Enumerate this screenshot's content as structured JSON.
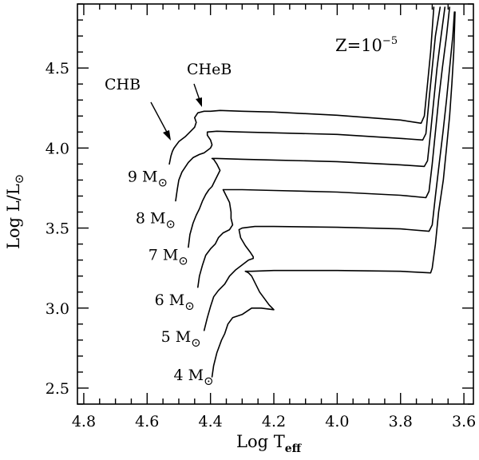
{
  "chart_data": {
    "type": "line",
    "xlabel": "Log T",
    "xlabel_sub": "eff",
    "ylabel": "Log L/L",
    "ylabel_sub": "⊙",
    "xlim": [
      4.82,
      3.57
    ],
    "ylim": [
      2.4,
      4.9
    ],
    "x_reversed": true,
    "grid": false,
    "x_major_ticks": [
      4.8,
      4.6,
      4.4,
      4.2,
      4.0,
      3.8,
      3.6
    ],
    "x_tick_labels": [
      "4.8",
      "4.6",
      "4.4",
      "4.2",
      "4.0",
      "3.8",
      "3.6"
    ],
    "y_major_ticks": [
      2.5,
      3.0,
      3.5,
      4.0,
      4.5
    ],
    "y_tick_labels": [
      "2.5",
      "3.0",
      "3.5",
      "4.0",
      "4.5"
    ],
    "annotations": {
      "metallicity": {
        "text": "Z=10",
        "sup": "−5"
      },
      "chb": "CHB",
      "cheb": "CHeB"
    },
    "mass_labels": [
      {
        "text": "9 M",
        "sym": "⊙",
        "at": [
          4.535,
          3.79
        ]
      },
      {
        "text": "8 M",
        "sym": "⊙",
        "at": [
          4.51,
          3.53
        ]
      },
      {
        "text": "7 M",
        "sym": "⊙",
        "at": [
          4.47,
          3.3
        ]
      },
      {
        "text": "6 M",
        "sym": "⊙",
        "at": [
          4.45,
          3.02
        ]
      },
      {
        "text": "5 M",
        "sym": "⊙",
        "at": [
          4.43,
          2.79
        ]
      },
      {
        "text": "4 M",
        "sym": "⊙",
        "at": [
          4.39,
          2.55
        ]
      }
    ],
    "series": [
      {
        "points": [
          [
            4.395,
            2.57
          ],
          [
            4.39,
            2.64
          ],
          [
            4.38,
            2.72
          ],
          [
            4.365,
            2.8
          ],
          [
            4.355,
            2.84
          ],
          [
            4.345,
            2.9
          ],
          [
            4.33,
            2.94
          ],
          [
            4.3,
            2.96
          ],
          [
            4.27,
            3.0
          ],
          [
            4.24,
            3.0
          ],
          [
            4.2,
            2.99
          ],
          [
            4.2,
            2.99
          ],
          [
            4.215,
            3.02
          ],
          [
            4.23,
            3.06
          ],
          [
            4.245,
            3.1
          ],
          [
            4.26,
            3.16
          ],
          [
            4.27,
            3.2
          ],
          [
            4.28,
            3.22
          ],
          [
            4.29,
            3.23
          ],
          [
            4.27,
            3.23
          ],
          [
            4.2,
            3.235
          ],
          [
            4.0,
            3.235
          ],
          [
            3.8,
            3.23
          ],
          [
            3.705,
            3.22
          ],
          [
            3.7,
            3.25
          ],
          [
            3.69,
            3.4
          ],
          [
            3.68,
            3.6
          ],
          [
            3.665,
            3.8
          ],
          [
            3.655,
            4.0
          ],
          [
            3.645,
            4.2
          ],
          [
            3.638,
            4.4
          ],
          [
            3.632,
            4.6
          ],
          [
            3.628,
            4.85
          ]
        ]
      },
      {
        "points": [
          [
            4.42,
            2.86
          ],
          [
            4.41,
            2.94
          ],
          [
            4.4,
            3.01
          ],
          [
            4.39,
            3.07
          ],
          [
            4.375,
            3.11
          ],
          [
            4.355,
            3.15
          ],
          [
            4.34,
            3.2
          ],
          [
            4.32,
            3.24
          ],
          [
            4.3,
            3.27
          ],
          [
            4.28,
            3.3
          ],
          [
            4.265,
            3.31
          ],
          [
            4.265,
            3.32
          ],
          [
            4.275,
            3.35
          ],
          [
            4.29,
            3.39
          ],
          [
            4.305,
            3.44
          ],
          [
            4.31,
            3.49
          ],
          [
            4.3,
            3.5
          ],
          [
            4.26,
            3.51
          ],
          [
            4.2,
            3.51
          ],
          [
            4.0,
            3.505
          ],
          [
            3.8,
            3.495
          ],
          [
            3.71,
            3.48
          ],
          [
            3.7,
            3.52
          ],
          [
            3.69,
            3.7
          ],
          [
            3.678,
            3.9
          ],
          [
            3.666,
            4.1
          ],
          [
            3.655,
            4.3
          ],
          [
            3.645,
            4.5
          ],
          [
            3.635,
            4.7
          ],
          [
            3.63,
            4.85
          ]
        ]
      },
      {
        "points": [
          [
            4.44,
            3.13
          ],
          [
            4.435,
            3.2
          ],
          [
            4.425,
            3.27
          ],
          [
            4.415,
            3.33
          ],
          [
            4.4,
            3.37
          ],
          [
            4.385,
            3.4
          ],
          [
            4.375,
            3.44
          ],
          [
            4.36,
            3.47
          ],
          [
            4.34,
            3.49
          ],
          [
            4.33,
            3.52
          ],
          [
            4.335,
            3.56
          ],
          [
            4.335,
            3.6
          ],
          [
            4.34,
            3.66
          ],
          [
            4.355,
            3.72
          ],
          [
            4.36,
            3.74
          ],
          [
            4.34,
            3.74
          ],
          [
            4.3,
            3.74
          ],
          [
            4.2,
            3.735
          ],
          [
            4.0,
            3.725
          ],
          [
            3.8,
            3.705
          ],
          [
            3.72,
            3.69
          ],
          [
            3.71,
            3.73
          ],
          [
            3.7,
            3.9
          ],
          [
            3.69,
            4.1
          ],
          [
            3.68,
            4.3
          ],
          [
            3.668,
            4.5
          ],
          [
            3.655,
            4.7
          ],
          [
            3.645,
            4.88
          ]
        ]
      },
      {
        "points": [
          [
            4.47,
            3.38
          ],
          [
            4.465,
            3.46
          ],
          [
            4.455,
            3.53
          ],
          [
            4.445,
            3.58
          ],
          [
            4.435,
            3.62
          ],
          [
            4.425,
            3.67
          ],
          [
            4.415,
            3.71
          ],
          [
            4.405,
            3.74
          ],
          [
            4.395,
            3.76
          ],
          [
            4.385,
            3.8
          ],
          [
            4.375,
            3.84
          ],
          [
            4.37,
            3.86
          ],
          [
            4.38,
            3.9
          ],
          [
            4.39,
            3.93
          ],
          [
            4.395,
            3.935
          ],
          [
            4.38,
            3.935
          ],
          [
            4.3,
            3.93
          ],
          [
            4.2,
            3.925
          ],
          [
            4.0,
            3.915
          ],
          [
            3.8,
            3.895
          ],
          [
            3.725,
            3.885
          ],
          [
            3.715,
            3.92
          ],
          [
            3.705,
            4.1
          ],
          [
            3.695,
            4.3
          ],
          [
            3.685,
            4.5
          ],
          [
            3.672,
            4.7
          ],
          [
            3.66,
            4.88
          ]
        ]
      },
      {
        "points": [
          [
            4.51,
            3.67
          ],
          [
            4.505,
            3.74
          ],
          [
            4.5,
            3.8
          ],
          [
            4.49,
            3.85
          ],
          [
            4.48,
            3.88
          ],
          [
            4.47,
            3.91
          ],
          [
            4.455,
            3.94
          ],
          [
            4.435,
            3.96
          ],
          [
            4.42,
            3.97
          ],
          [
            4.4,
            4.0
          ],
          [
            4.395,
            4.02
          ],
          [
            4.4,
            4.05
          ],
          [
            4.41,
            4.08
          ],
          [
            4.41,
            4.1
          ],
          [
            4.38,
            4.105
          ],
          [
            4.3,
            4.1
          ],
          [
            4.2,
            4.095
          ],
          [
            4.0,
            4.085
          ],
          [
            3.8,
            4.06
          ],
          [
            3.73,
            4.05
          ],
          [
            3.72,
            4.09
          ],
          [
            3.71,
            4.3
          ],
          [
            3.7,
            4.5
          ],
          [
            3.69,
            4.7
          ],
          [
            3.675,
            4.88
          ]
        ]
      },
      {
        "points": [
          [
            4.53,
            3.9
          ],
          [
            4.525,
            3.95
          ],
          [
            4.52,
            3.98
          ],
          [
            4.515,
            4.0
          ],
          [
            4.5,
            4.04
          ],
          [
            4.48,
            4.07
          ],
          [
            4.465,
            4.1
          ],
          [
            4.45,
            4.13
          ],
          [
            4.445,
            4.16
          ],
          [
            4.45,
            4.19
          ],
          [
            4.44,
            4.22
          ],
          [
            4.42,
            4.23
          ],
          [
            4.4,
            4.23
          ],
          [
            4.37,
            4.235
          ],
          [
            4.3,
            4.23
          ],
          [
            4.2,
            4.225
          ],
          [
            4.0,
            4.205
          ],
          [
            3.8,
            4.175
          ],
          [
            3.735,
            4.155
          ],
          [
            3.725,
            4.2
          ],
          [
            3.715,
            4.4
          ],
          [
            3.705,
            4.6
          ],
          [
            3.695,
            4.88
          ]
        ]
      }
    ]
  }
}
